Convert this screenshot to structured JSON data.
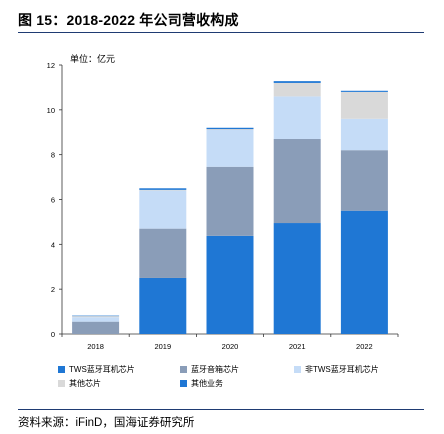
{
  "figure": {
    "title": "图 15：2018-2022 年公司营收构成",
    "source": "资料来源：iFinD，国海证券研究所"
  },
  "chart_data": {
    "type": "bar",
    "stacked": true,
    "unit_label": "单位：亿元",
    "categories": [
      "2018",
      "2019",
      "2020",
      "2021",
      "2022"
    ],
    "ylim": [
      0,
      12
    ],
    "yticks": [
      0,
      2,
      4,
      6,
      8,
      10,
      12
    ],
    "legend_position": "bottom",
    "series": [
      {
        "name": "TWS蓝牙耳机芯片",
        "color": "#1f77d4",
        "values": [
          0.0,
          2.5,
          4.38,
          4.95,
          5.5
        ]
      },
      {
        "name": "蓝牙音箱芯片",
        "color": "#8a9db8",
        "values": [
          0.55,
          2.2,
          3.08,
          3.75,
          2.7
        ]
      },
      {
        "name": "非TWS蓝牙耳机芯片",
        "color": "#c5dcf7",
        "values": [
          0.2,
          1.7,
          1.64,
          1.9,
          1.4
        ]
      },
      {
        "name": "其他芯片",
        "color": "#d9d9d9",
        "values": [
          0.05,
          0.03,
          0.04,
          0.6,
          1.2
        ]
      },
      {
        "name": "其他业务",
        "color": "#1f77d4",
        "values": [
          0.02,
          0.07,
          0.06,
          0.08,
          0.05
        ]
      }
    ]
  }
}
